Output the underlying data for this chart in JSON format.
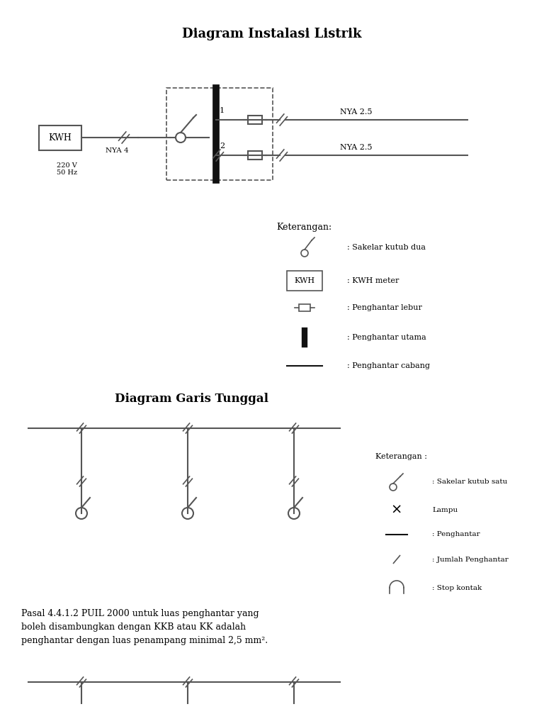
{
  "title1": "Diagram Instalasi Listrik",
  "title2": "Diagram Garis Tunggal",
  "background": "#ffffff",
  "text_color": "#000000",
  "line_color": "#555555",
  "legend1_title": "Keterangan:",
  "legend1_items": [
    ": Sakelar kutub dua",
    ": KWH meter",
    ": Penghantar lebur",
    ": Penghantar utama",
    ": Penghantar cabang"
  ],
  "legend2_title": "Keterangan :",
  "legend2_items": [
    ": Sakelar kutub satu",
    "Lampu",
    ": Penghantar",
    ": Jumlah Penghantar",
    ": Stop kontak"
  ],
  "pasal_text": "Pasal 4.4.1.2 PUIL 2000 untuk luas penghantar yang\nboleh disambungkan dengan KKB atau KK adalah\npenghantar dengan luas penampang minimal 2,5 mm².",
  "nya_label": "NYA 2.5",
  "nya4_label": "NYA 4",
  "kwh_label": "KWH",
  "voltage_label": "220 V\n50 Hz",
  "label1": "1",
  "label2": "2"
}
